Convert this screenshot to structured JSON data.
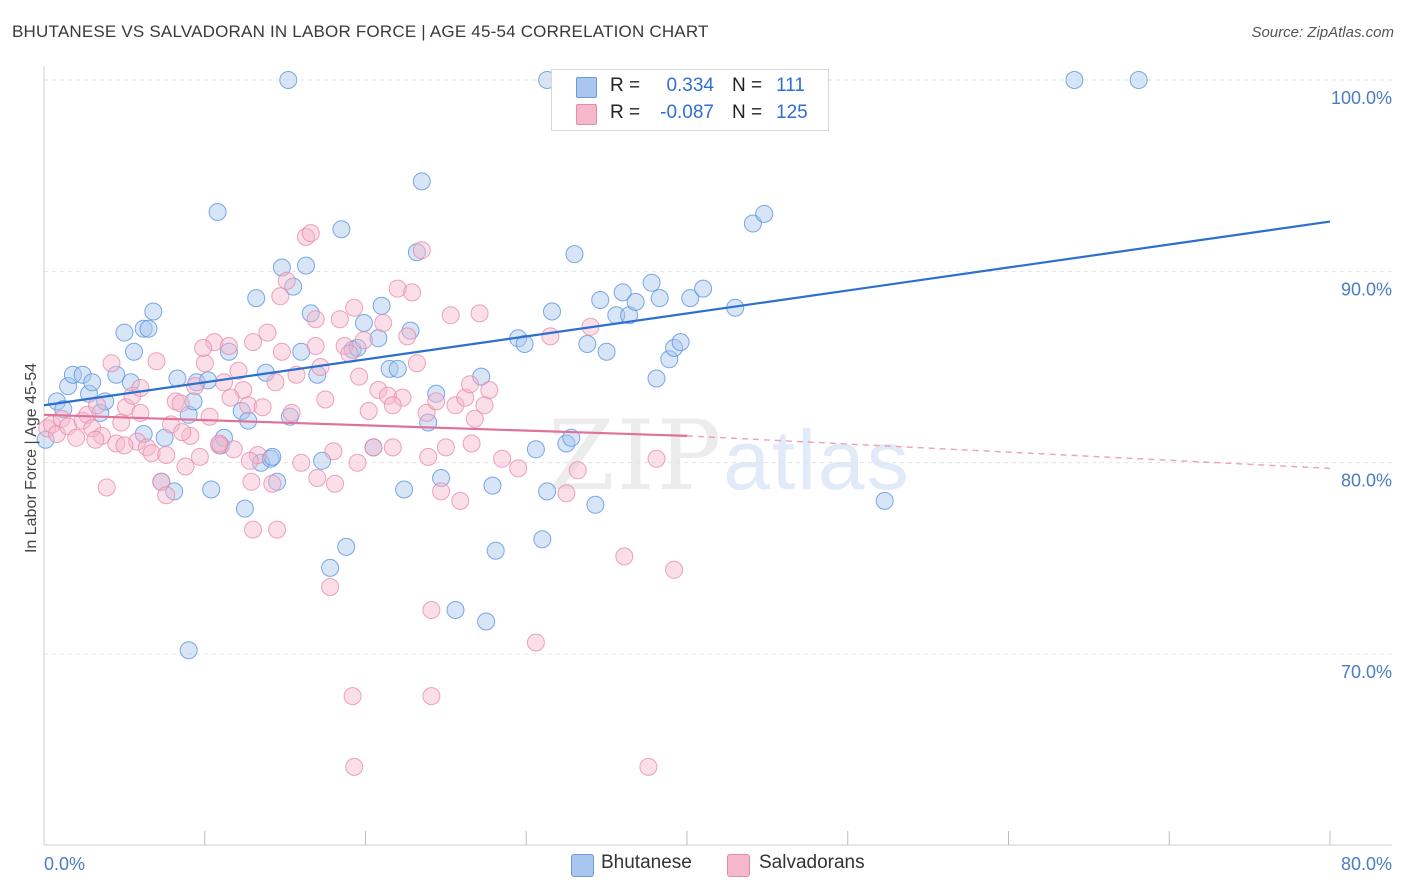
{
  "title": "BHUTANESE VS SALVADORAN IN LABOR FORCE | AGE 45-54 CORRELATION CHART",
  "source": "Source: ZipAtlas.com",
  "watermark": {
    "zip": "ZIP",
    "atlas": "atlas"
  },
  "legend": {
    "rows": [
      {
        "r_label": "R =",
        "r_value": "0.334",
        "n_label": "N =",
        "n_value": "111",
        "color": "#a9c6ee"
      },
      {
        "r_label": "R =",
        "r_value": "-0.087",
        "n_label": "N =",
        "n_value": "125",
        "color": "#f5b8cb"
      }
    ]
  },
  "bottom_legend": [
    {
      "label": "Bhutanese",
      "color": "#a9c6ee"
    },
    {
      "label": "Salvadorans",
      "color": "#f5b8cb"
    }
  ],
  "chart_data": {
    "type": "scatter",
    "xlabel": "",
    "ylabel": "In Labor Force | Age 45-54",
    "xlim": [
      0,
      80
    ],
    "ylim": [
      62,
      101.5
    ],
    "x_tick_labels": [
      {
        "value": 0,
        "label": "0.0%"
      },
      {
        "value": 80,
        "label": "80.0%"
      }
    ],
    "y_tick_labels": [
      {
        "value": 100,
        "label": "100.0%"
      },
      {
        "value": 90,
        "label": "90.0%"
      },
      {
        "value": 80,
        "label": "80.0%"
      },
      {
        "value": 70,
        "label": "70.0%"
      }
    ],
    "grid": true,
    "series": [
      {
        "name": "Bhutanese",
        "color": "#4f8fe0",
        "fill": "#a9c6ee",
        "trend": {
          "x": [
            0,
            80
          ],
          "y": [
            83.0,
            92.6
          ],
          "style": "solid",
          "color": "#2b6fcf"
        },
        "points": [
          [
            0.1,
            81.2
          ],
          [
            0.8,
            83.2
          ],
          [
            1.2,
            82.8
          ],
          [
            1.5,
            84.0
          ],
          [
            1.8,
            84.6
          ],
          [
            2.4,
            84.6
          ],
          [
            2.8,
            83.6
          ],
          [
            3.0,
            84.2
          ],
          [
            3.5,
            82.6
          ],
          [
            3.8,
            83.2
          ],
          [
            4.5,
            84.6
          ],
          [
            5.0,
            86.8
          ],
          [
            5.4,
            84.2
          ],
          [
            5.6,
            85.8
          ],
          [
            6.2,
            87.0
          ],
          [
            6.5,
            87.0
          ],
          [
            6.8,
            87.9
          ],
          [
            6.2,
            81.5
          ],
          [
            7.3,
            79.0
          ],
          [
            7.5,
            81.3
          ],
          [
            8.1,
            78.5
          ],
          [
            8.3,
            84.4
          ],
          [
            9.0,
            82.5
          ],
          [
            9.3,
            83.2
          ],
          [
            9.5,
            84.2
          ],
          [
            10.2,
            84.3
          ],
          [
            10.4,
            78.6
          ],
          [
            10.8,
            93.1
          ],
          [
            11.0,
            80.9
          ],
          [
            11.2,
            81.3
          ],
          [
            11.5,
            85.8
          ],
          [
            12.3,
            82.7
          ],
          [
            12.5,
            77.6
          ],
          [
            12.7,
            82.2
          ],
          [
            13.2,
            88.6
          ],
          [
            13.5,
            80.0
          ],
          [
            13.8,
            84.7
          ],
          [
            14.1,
            80.2
          ],
          [
            14.2,
            80.3
          ],
          [
            14.5,
            79.0
          ],
          [
            14.8,
            90.2
          ],
          [
            15.3,
            82.4
          ],
          [
            15.5,
            89.2
          ],
          [
            16.0,
            85.8
          ],
          [
            16.3,
            90.3
          ],
          [
            16.6,
            87.8
          ],
          [
            17.0,
            84.6
          ],
          [
            17.3,
            80.1
          ],
          [
            17.8,
            74.5
          ],
          [
            18.5,
            92.2
          ],
          [
            18.8,
            75.6
          ],
          [
            19.2,
            85.9
          ],
          [
            19.5,
            86.0
          ],
          [
            19.9,
            87.3
          ],
          [
            20.5,
            80.8
          ],
          [
            20.8,
            86.5
          ],
          [
            21.0,
            88.2
          ],
          [
            21.5,
            84.9
          ],
          [
            22.0,
            84.9
          ],
          [
            22.4,
            78.6
          ],
          [
            22.8,
            86.9
          ],
          [
            23.2,
            91.0
          ],
          [
            23.5,
            94.7
          ],
          [
            23.9,
            82.1
          ],
          [
            24.4,
            83.6
          ],
          [
            24.7,
            79.2
          ],
          [
            25.6,
            72.3
          ],
          [
            27.2,
            84.5
          ],
          [
            27.5,
            71.7
          ],
          [
            27.9,
            78.8
          ],
          [
            28.1,
            75.4
          ],
          [
            29.5,
            86.5
          ],
          [
            29.9,
            86.2
          ],
          [
            30.6,
            80.7
          ],
          [
            31.0,
            76.0
          ],
          [
            31.3,
            78.5
          ],
          [
            31.6,
            87.9
          ],
          [
            32.5,
            81.0
          ],
          [
            32.8,
            81.3
          ],
          [
            33.0,
            90.9
          ],
          [
            33.8,
            86.2
          ],
          [
            34.3,
            77.8
          ],
          [
            34.6,
            88.5
          ],
          [
            35.0,
            85.8
          ],
          [
            35.6,
            87.7
          ],
          [
            36.0,
            88.9
          ],
          [
            36.4,
            87.7
          ],
          [
            36.8,
            88.4
          ],
          [
            37.8,
            89.4
          ],
          [
            38.1,
            84.4
          ],
          [
            38.3,
            88.6
          ],
          [
            38.9,
            85.4
          ],
          [
            39.2,
            86.0
          ],
          [
            39.6,
            86.3
          ],
          [
            40.2,
            88.6
          ],
          [
            41.0,
            89.1
          ],
          [
            43.0,
            88.1
          ],
          [
            44.1,
            92.5
          ],
          [
            44.8,
            93.0
          ],
          [
            52.3,
            78.0
          ],
          [
            15.2,
            100.0
          ],
          [
            31.3,
            100.0
          ],
          [
            64.1,
            100.0
          ],
          [
            68.1,
            100.0
          ],
          [
            9.0,
            70.2
          ]
        ]
      },
      {
        "name": "Salvadorans",
        "color": "#e886a7",
        "fill": "#f5b8cb",
        "trend": {
          "x": [
            0,
            40
          ],
          "y": [
            82.5,
            81.4
          ],
          "style": "solid",
          "color": "#e0729a"
        },
        "trend_dashed": {
          "x": [
            40,
            80
          ],
          "y": [
            81.4,
            79.7
          ],
          "style": "dashed",
          "color": "#e8a2bb"
        },
        "points": [
          [
            0.2,
            81.8
          ],
          [
            0.5,
            82.0
          ],
          [
            0.8,
            81.5
          ],
          [
            1.1,
            82.3
          ],
          [
            1.5,
            81.9
          ],
          [
            2.0,
            81.3
          ],
          [
            2.4,
            82.2
          ],
          [
            2.7,
            82.5
          ],
          [
            3.0,
            81.8
          ],
          [
            3.3,
            83.0
          ],
          [
            3.6,
            81.4
          ],
          [
            3.9,
            78.7
          ],
          [
            4.2,
            85.2
          ],
          [
            4.5,
            81.0
          ],
          [
            4.8,
            82.1
          ],
          [
            5.1,
            82.9
          ],
          [
            5.5,
            83.5
          ],
          [
            5.8,
            81.1
          ],
          [
            6.0,
            82.6
          ],
          [
            6.4,
            80.8
          ],
          [
            6.7,
            80.5
          ],
          [
            7.0,
            85.3
          ],
          [
            7.3,
            79.0
          ],
          [
            7.6,
            80.4
          ],
          [
            7.9,
            82.0
          ],
          [
            8.2,
            83.2
          ],
          [
            8.5,
            83.1
          ],
          [
            8.8,
            79.8
          ],
          [
            9.1,
            81.4
          ],
          [
            9.4,
            84.0
          ],
          [
            9.7,
            80.3
          ],
          [
            10.0,
            85.2
          ],
          [
            10.3,
            82.4
          ],
          [
            10.6,
            86.3
          ],
          [
            10.9,
            80.9
          ],
          [
            11.2,
            84.2
          ],
          [
            11.5,
            86.1
          ],
          [
            11.8,
            80.7
          ],
          [
            12.1,
            84.8
          ],
          [
            12.4,
            83.8
          ],
          [
            12.7,
            83.0
          ],
          [
            13.0,
            76.5
          ],
          [
            13.3,
            80.4
          ],
          [
            13.6,
            82.9
          ],
          [
            13.9,
            86.8
          ],
          [
            14.2,
            78.9
          ],
          [
            14.5,
            76.5
          ],
          [
            14.8,
            85.8
          ],
          [
            15.1,
            89.5
          ],
          [
            15.4,
            82.6
          ],
          [
            15.7,
            84.6
          ],
          [
            16.0,
            80.0
          ],
          [
            16.3,
            91.8
          ],
          [
            16.6,
            92.0
          ],
          [
            16.9,
            87.5
          ],
          [
            17.2,
            85.0
          ],
          [
            17.5,
            83.3
          ],
          [
            17.8,
            73.5
          ],
          [
            18.1,
            78.9
          ],
          [
            18.4,
            87.5
          ],
          [
            18.7,
            86.1
          ],
          [
            19.0,
            85.7
          ],
          [
            19.3,
            88.1
          ],
          [
            19.6,
            84.5
          ],
          [
            19.9,
            86.4
          ],
          [
            20.2,
            82.7
          ],
          [
            20.5,
            80.8
          ],
          [
            20.8,
            83.8
          ],
          [
            21.1,
            87.3
          ],
          [
            21.4,
            83.5
          ],
          [
            21.7,
            80.8
          ],
          [
            22.0,
            89.1
          ],
          [
            22.3,
            83.4
          ],
          [
            22.6,
            86.6
          ],
          [
            22.9,
            88.9
          ],
          [
            23.2,
            85.2
          ],
          [
            23.5,
            91.1
          ],
          [
            23.8,
            82.6
          ],
          [
            24.1,
            72.3
          ],
          [
            24.4,
            83.2
          ],
          [
            24.7,
            78.5
          ],
          [
            25.0,
            80.8
          ],
          [
            25.3,
            87.7
          ],
          [
            25.6,
            83.0
          ],
          [
            25.9,
            78.0
          ],
          [
            26.2,
            83.4
          ],
          [
            26.5,
            84.1
          ],
          [
            26.8,
            82.3
          ],
          [
            27.1,
            87.8
          ],
          [
            27.4,
            83.0
          ],
          [
            27.7,
            83.8
          ],
          [
            28.5,
            80.2
          ],
          [
            29.5,
            79.7
          ],
          [
            30.6,
            70.6
          ],
          [
            31.5,
            86.6
          ],
          [
            32.5,
            78.4
          ],
          [
            33.2,
            79.6
          ],
          [
            34.0,
            87.1
          ],
          [
            36.1,
            75.1
          ],
          [
            38.1,
            80.2
          ],
          [
            39.2,
            74.4
          ],
          [
            17.0,
            79.2
          ],
          [
            18.0,
            80.6
          ],
          [
            14.7,
            88.7
          ],
          [
            12.8,
            80.1
          ],
          [
            19.2,
            67.8
          ],
          [
            19.3,
            64.1
          ],
          [
            37.6,
            64.1
          ],
          [
            24.1,
            67.8
          ],
          [
            13.0,
            86.3
          ],
          [
            11.6,
            83.4
          ],
          [
            12.9,
            79.0
          ],
          [
            8.6,
            81.6
          ],
          [
            10.9,
            81.0
          ],
          [
            6.0,
            83.9
          ],
          [
            7.6,
            78.3
          ],
          [
            16.9,
            86.1
          ],
          [
            19.5,
            80.0
          ],
          [
            21.7,
            83.0
          ],
          [
            23.9,
            80.3
          ],
          [
            26.6,
            81.0
          ],
          [
            14.4,
            84.2
          ],
          [
            3.2,
            81.2
          ],
          [
            5.0,
            80.9
          ],
          [
            9.9,
            86.0
          ]
        ]
      }
    ]
  }
}
